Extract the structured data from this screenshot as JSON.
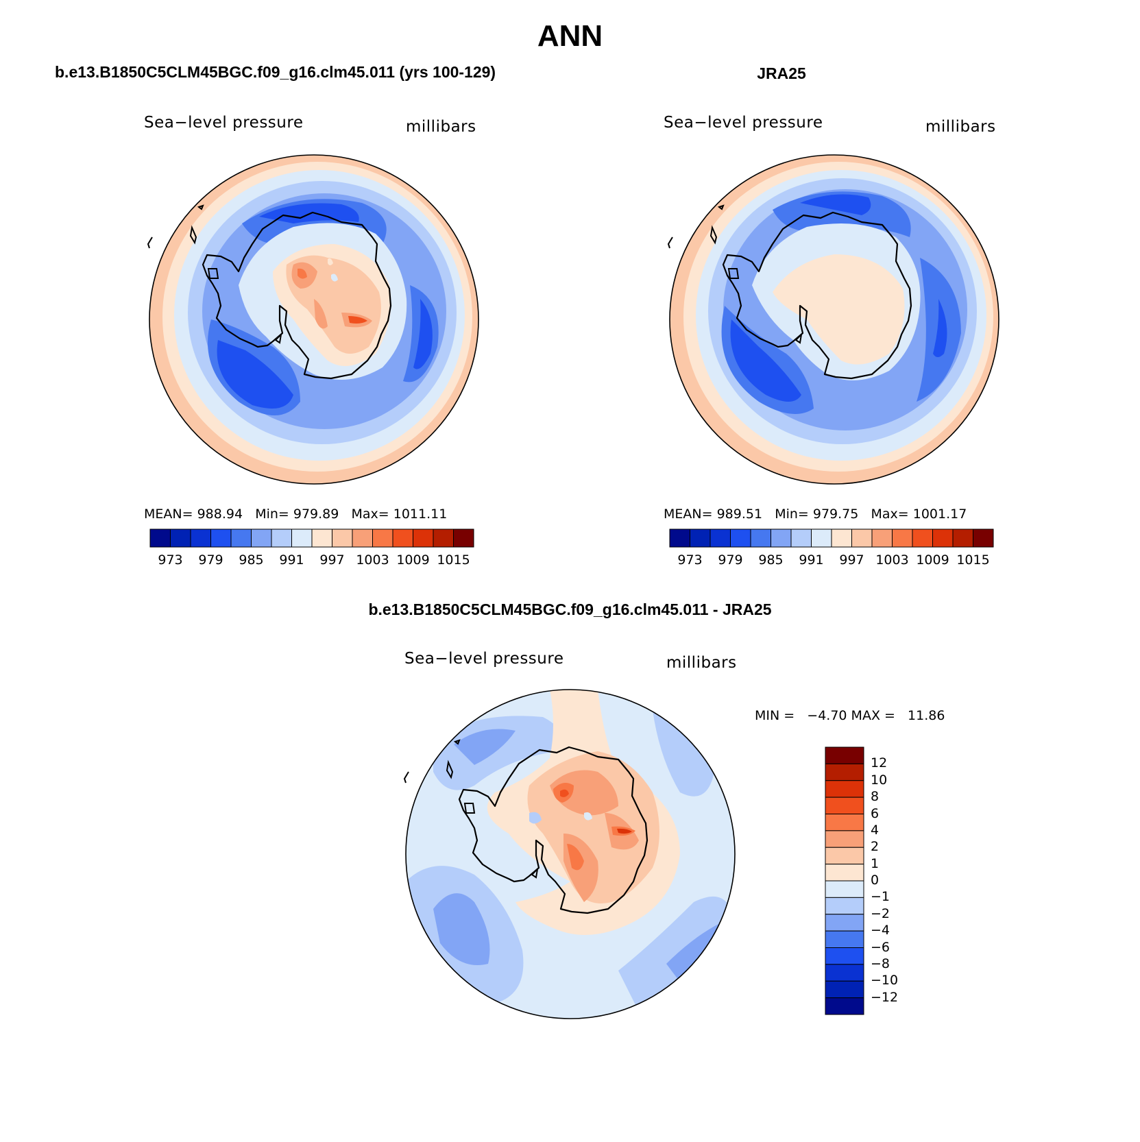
{
  "figure": {
    "season": "ANN"
  },
  "panels": [
    {
      "heading": "b.e13.B1850C5CLM45BGC.f09_g16.clm45.011 (yrs 100-129)",
      "variable": "Sea−level pressure",
      "units": "millibars",
      "stats": {
        "mean_label": "MEAN=",
        "mean": "988.94",
        "min_label": "Min=",
        "min": "979.89",
        "max_label": "Max=",
        "max": "1011.11"
      },
      "colorbar_ticks": [
        "973",
        "979",
        "985",
        "991",
        "997",
        "1003",
        "1009",
        "1015"
      ]
    },
    {
      "heading": "JRA25",
      "variable": "Sea−level pressure",
      "units": "millibars",
      "stats": {
        "mean_label": "MEAN=",
        "mean": "989.51",
        "min_label": "Min=",
        "min": "979.75",
        "max_label": "Max=",
        "max": "1001.17"
      },
      "colorbar_ticks": [
        "973",
        "979",
        "985",
        "991",
        "997",
        "1003",
        "1009",
        "1015"
      ]
    }
  ],
  "difference": {
    "heading": "b.e13.B1850C5CLM45BGC.f09_g16.clm45.011 - JRA25",
    "variable": "Sea−level pressure",
    "units": "millibars",
    "minmax_text": "MIN =   −4.70 MAX =   11.86",
    "colorbar_ticks": [
      "12",
      "10",
      "8",
      "6",
      "4",
      "2",
      "1",
      "0",
      "−1",
      "−2",
      "−4",
      "−6",
      "−8",
      "−10",
      "−12"
    ]
  },
  "palettes": {
    "slp": [
      "#000a8c",
      "#0022b4",
      "#0a32d2",
      "#1e50f0",
      "#4678f0",
      "#82a5f5",
      "#b4cdfa",
      "#dcebfa",
      "#fde6d2",
      "#fbc8a8",
      "#f8a078",
      "#f87846",
      "#f0501e",
      "#dc3208",
      "#b41e00",
      "#780000"
    ],
    "diff": [
      "#780000",
      "#b41e00",
      "#dc3208",
      "#f0501e",
      "#f87846",
      "#f8a078",
      "#fbc8a8",
      "#fde6d2",
      "#dcebfa",
      "#b4cdfa",
      "#82a5f5",
      "#4678f0",
      "#1e50f0",
      "#0a32d2",
      "#0022b4",
      "#000a8c"
    ]
  }
}
